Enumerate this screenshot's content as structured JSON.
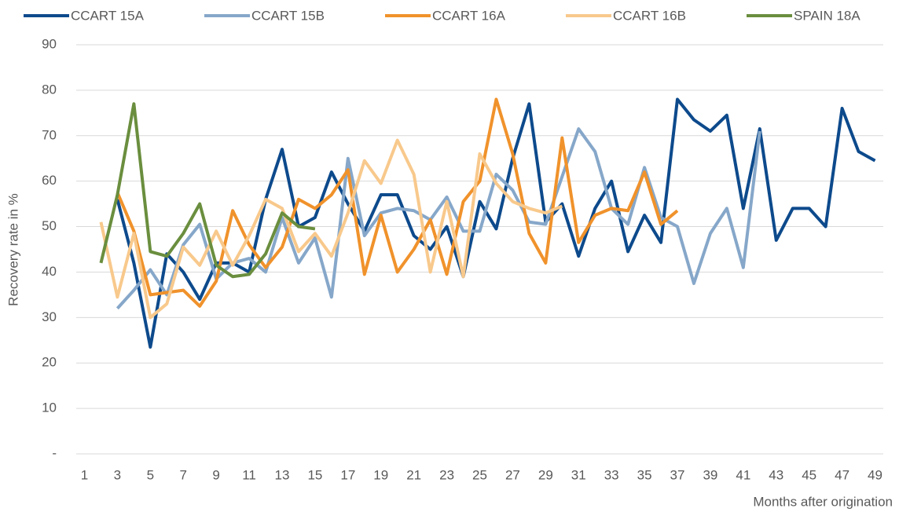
{
  "chart_data": {
    "type": "line",
    "y_label": "Recovery rate in %",
    "x_label": "Months after origination",
    "x": [
      1,
      2,
      3,
      4,
      5,
      6,
      7,
      8,
      9,
      10,
      11,
      12,
      13,
      14,
      15,
      16,
      17,
      18,
      19,
      20,
      21,
      22,
      23,
      24,
      25,
      26,
      27,
      28,
      29,
      30,
      31,
      32,
      33,
      34,
      35,
      36,
      37,
      38,
      39,
      40,
      41,
      42,
      43,
      44,
      45,
      46,
      47,
      48,
      49
    ],
    "xlim": [
      0.5,
      49.5
    ],
    "xticks": [
      1,
      3,
      5,
      7,
      9,
      11,
      13,
      15,
      17,
      19,
      21,
      23,
      25,
      27,
      29,
      31,
      33,
      35,
      37,
      39,
      41,
      43,
      45,
      47,
      49
    ],
    "ylim": [
      0,
      90
    ],
    "yticks": [
      {
        "value": 0,
        "label": "-"
      },
      10,
      20,
      30,
      40,
      50,
      60,
      70,
      80,
      90
    ],
    "grid": true,
    "legend": "top",
    "series": [
      {
        "name": "CCART 15A",
        "color": "#0d4a8c",
        "values": [
          null,
          null,
          56,
          42,
          23.5,
          44,
          40,
          34,
          42,
          42,
          40,
          56,
          67,
          50,
          52,
          62,
          55,
          49,
          57,
          57,
          48,
          45,
          50,
          39,
          55.5,
          49.5,
          65,
          77,
          51,
          55,
          43.5,
          54,
          60,
          44.5,
          52.5,
          46.5,
          78,
          73.5,
          71,
          74.5,
          54,
          71.5,
          47,
          54,
          54,
          50,
          76,
          66.5,
          64.5
        ]
      },
      {
        "name": "CCART 15B",
        "color": "#86a7c9",
        "values": [
          null,
          null,
          32,
          36,
          40.5,
          35,
          46,
          50.5,
          38.5,
          42,
          43,
          40,
          52,
          42,
          47.5,
          34.5,
          65,
          48,
          53,
          54,
          53.5,
          51.5,
          56.5,
          49,
          49,
          61.5,
          58,
          51,
          50.5,
          61,
          71.5,
          66.5,
          54,
          50.5,
          63,
          52,
          50,
          37.5,
          48.5,
          54,
          41,
          71,
          null,
          null,
          null,
          null,
          null,
          null,
          null
        ]
      },
      {
        "name": "CCART 16A",
        "color": "#f0922b",
        "values": [
          null,
          null,
          57.5,
          49,
          35,
          35.5,
          36,
          32.5,
          38,
          53.5,
          46,
          41,
          45.5,
          56,
          54,
          57,
          62.5,
          39.5,
          52.5,
          40,
          45,
          51.5,
          39.5,
          55.5,
          60,
          78,
          66,
          48.5,
          42,
          69.5,
          46.5,
          52.5,
          54,
          53.5,
          62,
          50.5,
          53.5,
          null,
          null,
          null,
          null,
          null,
          null,
          null,
          null,
          null,
          null,
          null,
          null
        ]
      },
      {
        "name": "CCART 16B",
        "color": "#f8c98c",
        "values": [
          null,
          51,
          34.5,
          48.5,
          30,
          33,
          45.5,
          41.5,
          49,
          41.5,
          48,
          56,
          54,
          44.5,
          48.5,
          43.5,
          53,
          64.5,
          59.5,
          69,
          61.5,
          40,
          55.5,
          39,
          66,
          59.5,
          55.5,
          54,
          53,
          54.5,
          null,
          null,
          null,
          null,
          null,
          null,
          null,
          null,
          null,
          null,
          null,
          null,
          null,
          null,
          null,
          null,
          null,
          null,
          null
        ]
      },
      {
        "name": "SPAIN 18A",
        "color": "#6a8e3e",
        "values": [
          null,
          42,
          57,
          77,
          44.5,
          43.5,
          48.5,
          55,
          41.5,
          39,
          39.5,
          44,
          53,
          50,
          49.5,
          null,
          null,
          null,
          null,
          null,
          null,
          null,
          null,
          null,
          null,
          null,
          null,
          null,
          null,
          null,
          null,
          null,
          null,
          null,
          null,
          null,
          null,
          null,
          null,
          null,
          null,
          null,
          null,
          null,
          null,
          null,
          null,
          null,
          null
        ]
      }
    ]
  }
}
